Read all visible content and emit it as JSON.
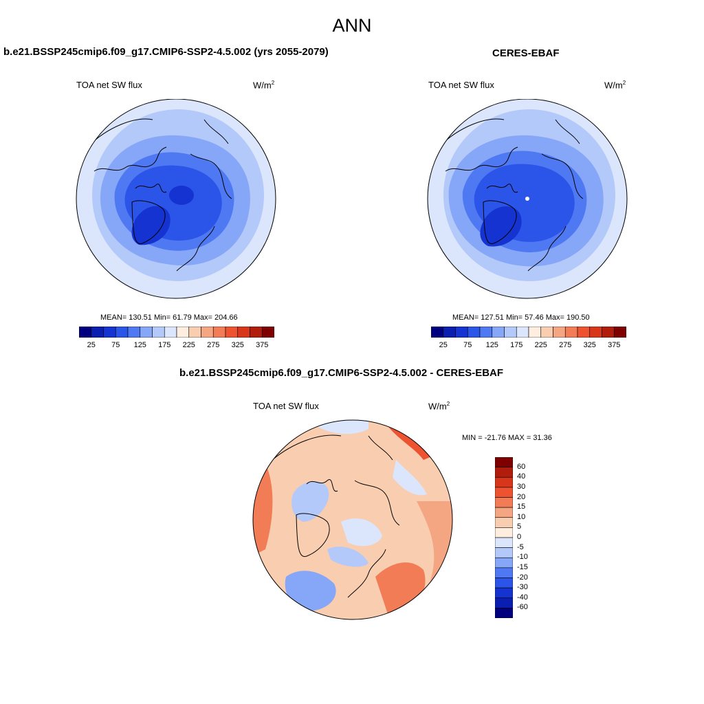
{
  "figure": {
    "season": "ANN"
  },
  "panels": {
    "model": {
      "title": "b.e21.BSSP245cmip6.f09_g17.CMIP6-SSP2-4.5.002 (yrs 2055-2079)",
      "variable": "TOA net SW flux",
      "units": "W/m",
      "units_sup": "2",
      "stats": "MEAN= 130.51  Min=  61.79  Max= 204.66",
      "mean": 130.51,
      "min": 61.79,
      "max": 204.66
    },
    "obs": {
      "title": "CERES-EBAF",
      "variable": "TOA net SW flux",
      "units": "W/m",
      "units_sup": "2",
      "stats": "MEAN= 127.51  Min=  57.46  Max= 190.50",
      "mean": 127.51,
      "min": 57.46,
      "max": 190.5
    },
    "diff": {
      "title": "b.e21.BSSP245cmip6.f09_g17.CMIP6-SSP2-4.5.002 - CERES-EBAF",
      "variable": "TOA net SW flux",
      "units": "W/m",
      "units_sup": "2",
      "stats": "MIN = -21.76 MAX =  31.36",
      "min": -21.76,
      "max": 31.36
    }
  },
  "colorbars": {
    "abs": {
      "tick_labels": [
        "25",
        "75",
        "125",
        "175",
        "225",
        "275",
        "325",
        "375"
      ],
      "colors": [
        "#00007f",
        "#0a1fb0",
        "#1433d0",
        "#2b55e8",
        "#4f79f2",
        "#86a6f7",
        "#b3c9fa",
        "#dbe6fc",
        "#fdeee0",
        "#f9cdb0",
        "#f4a683",
        "#f27c56",
        "#ee5331",
        "#d8361b",
        "#b11d0d",
        "#7f0000"
      ]
    },
    "diff": {
      "tick_labels": [
        "60",
        "40",
        "30",
        "20",
        "15",
        "10",
        "5",
        "0",
        "-5",
        "-10",
        "-15",
        "-20",
        "-30",
        "-40",
        "-60"
      ],
      "colors": [
        "#7f0000",
        "#b11d0d",
        "#d8361b",
        "#ee5331",
        "#f27c56",
        "#f4a683",
        "#f9cdb0",
        "#fdeee0",
        "#dbe6fc",
        "#b3c9fa",
        "#86a6f7",
        "#4f79f2",
        "#2b55e8",
        "#1433d0",
        "#0a1fb0",
        "#00007f"
      ]
    }
  },
  "map_colors": {
    "abs_bands": [
      "#dbe6fc",
      "#b3c9fa",
      "#86a6f7",
      "#4f79f2",
      "#2b55e8",
      "#1433d0"
    ],
    "diff_base": "#f9cdb0"
  }
}
